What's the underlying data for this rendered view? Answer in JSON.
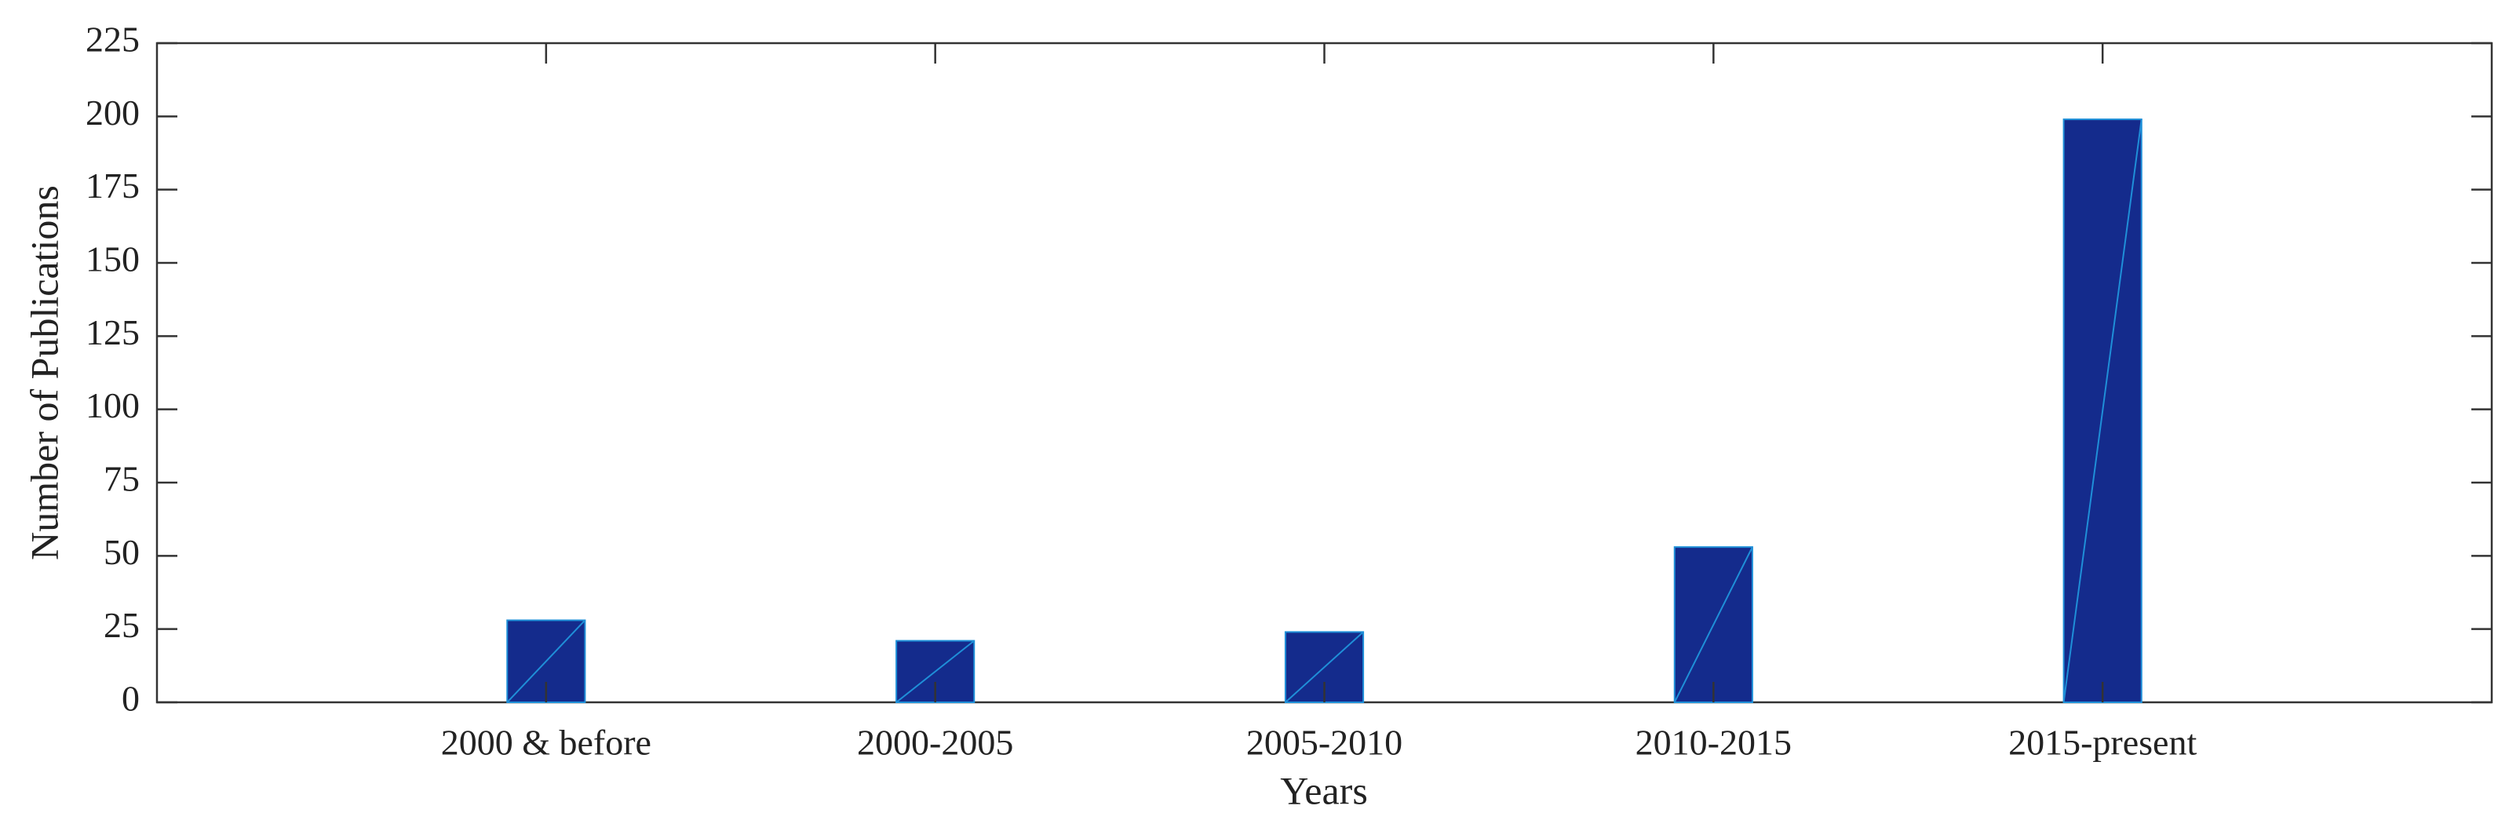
{
  "chart_data": {
    "type": "bar",
    "xlabel": "Years",
    "ylabel": "Number of Publications",
    "categories": [
      "2000 & before",
      "2000-2005",
      "2005-2010",
      "2010-2015",
      "2015-present"
    ],
    "values": [
      28,
      21,
      24,
      53,
      199
    ],
    "color": "#142b8c",
    "edge_color": "#1f8fd8",
    "ylim": [
      0,
      225
    ],
    "yticks": [
      0,
      25,
      50,
      75,
      100,
      125,
      150,
      175,
      200,
      225
    ]
  }
}
